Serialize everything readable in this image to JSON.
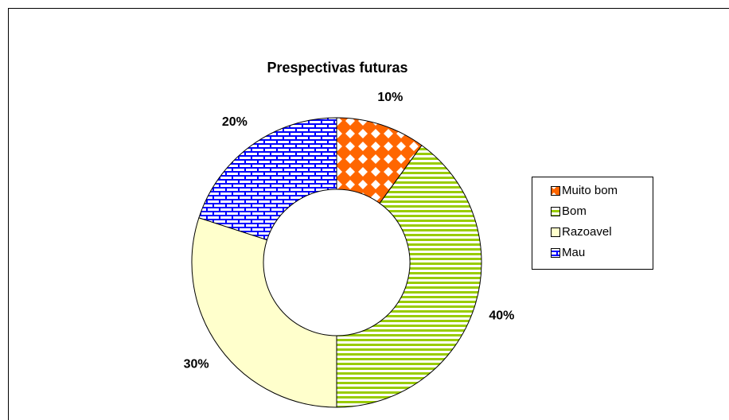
{
  "chart_data": {
    "type": "pie",
    "title": "Prespectivas futuras",
    "categories": [
      "Muito bom",
      "Bom",
      "Razoavel",
      "Mau"
    ],
    "values": [
      10,
      40,
      30,
      20
    ],
    "value_labels": [
      "10%",
      "40%",
      "30%",
      "20%"
    ],
    "colors": [
      "#ff6600",
      "#99cc00",
      "#ffffcc",
      "#0000ff"
    ],
    "legend": "right"
  }
}
